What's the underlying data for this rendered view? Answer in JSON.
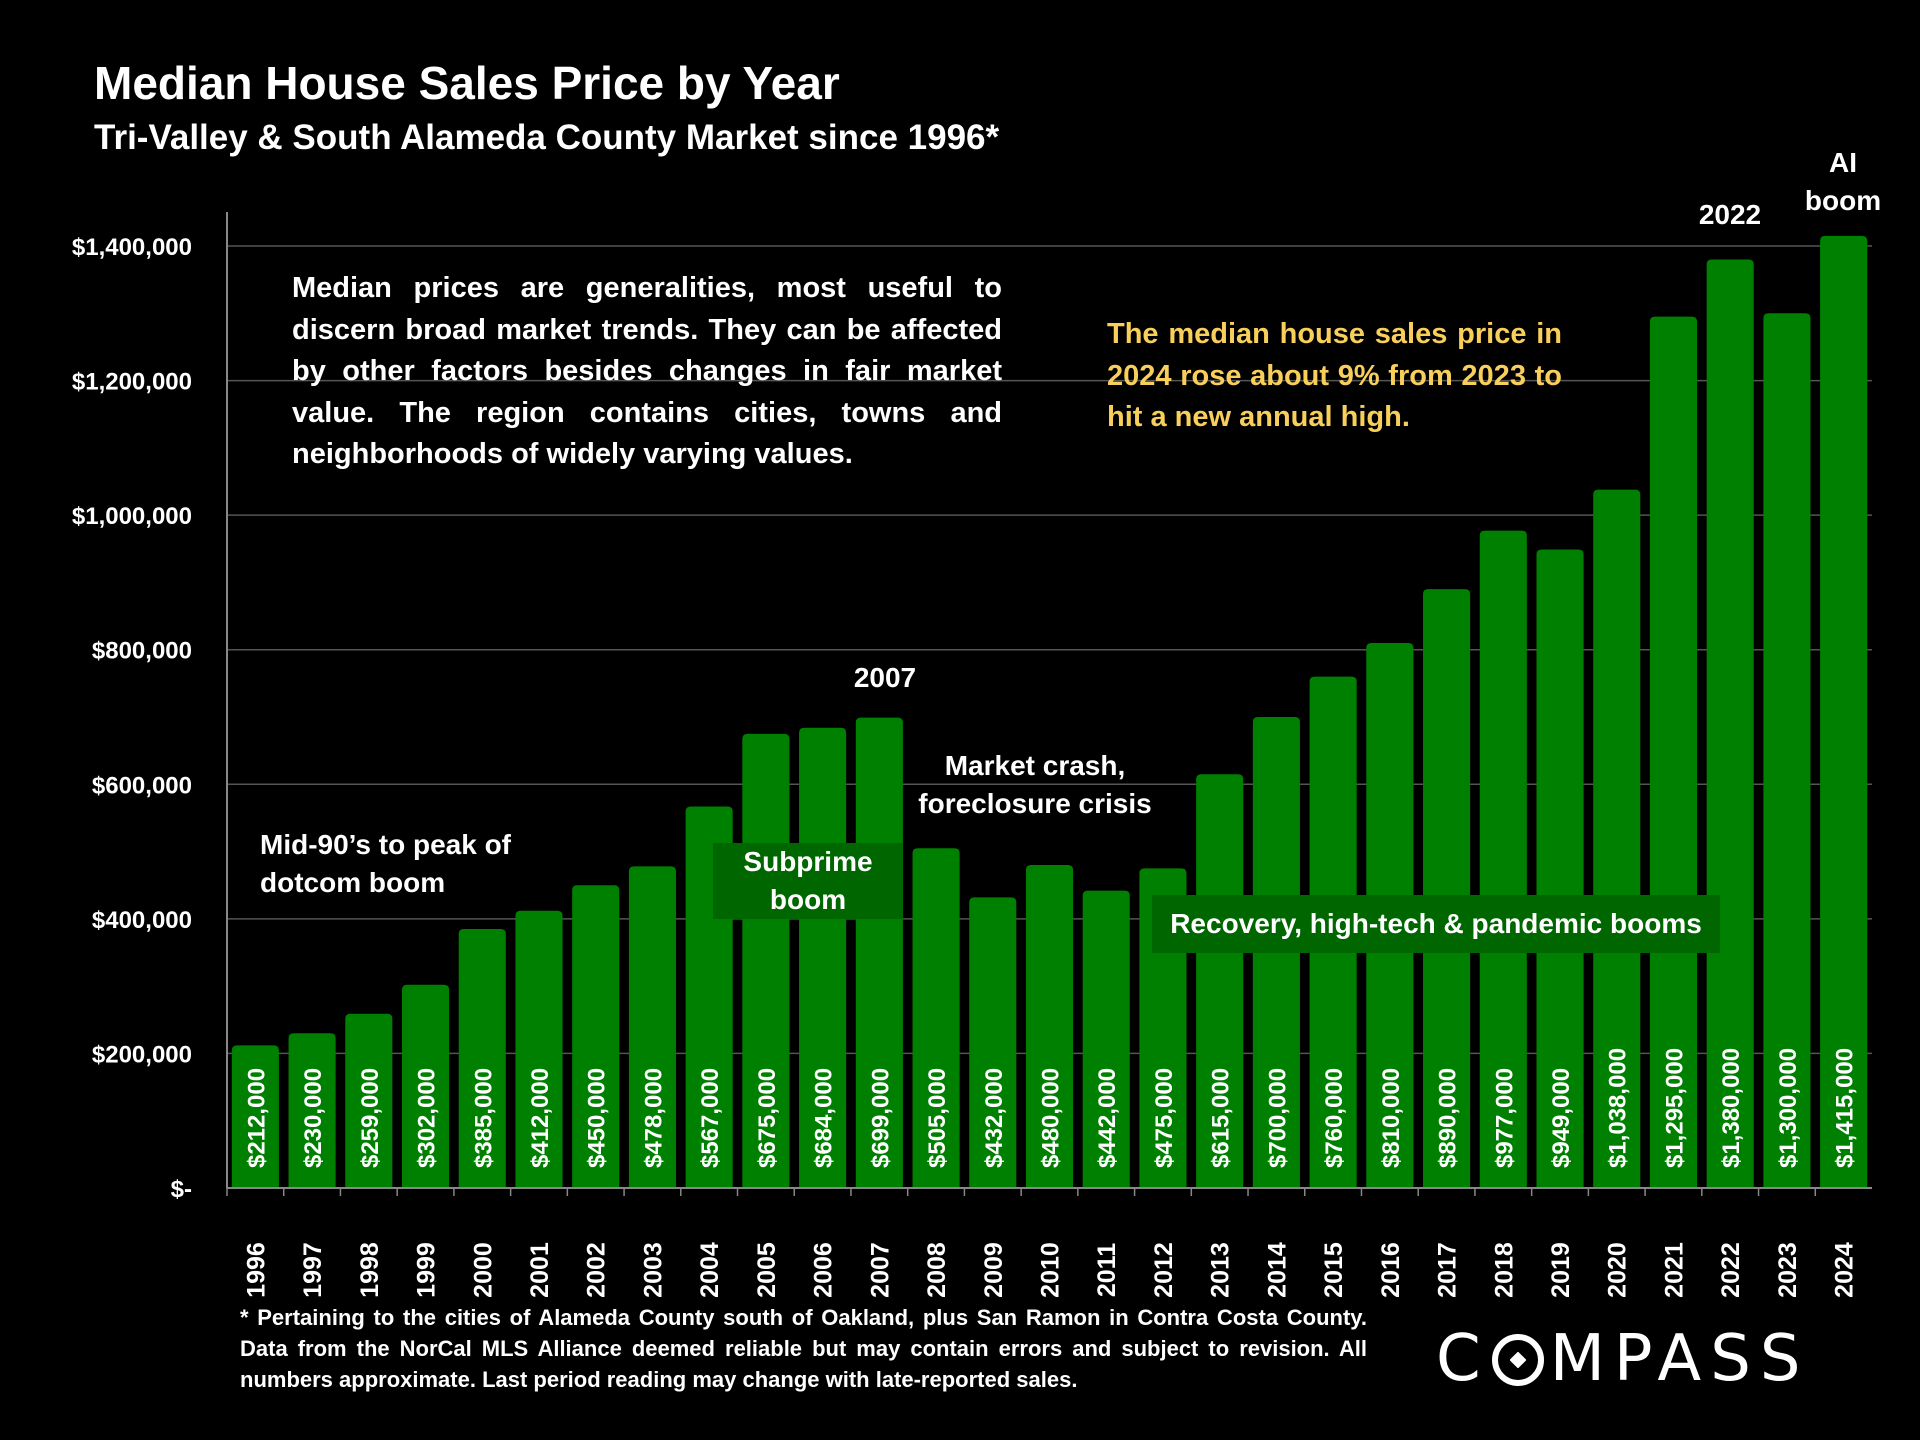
{
  "header": {
    "title": "Median House Sales Price by Year",
    "subtitle": "Tri-Valley & South Alameda County Market since 1996*"
  },
  "notes": {
    "general": "Median prices are generalities, most useful to discern broad market trends. They can be affected by other factors besides changes in fair market value. The region contains cities, towns and neighborhoods of widely varying values.",
    "highlight": "The median house sales price in 2024 rose about 9% from 2023 to hit a new annual high."
  },
  "annotations": {
    "dotcom": "Mid-90’s to peak of dotcom boom",
    "subprime": "Subprime boom",
    "y2007": "2007",
    "crash": "Market crash, foreclosure crisis",
    "recovery": "Recovery, high-tech & pandemic booms",
    "y2022": "2022",
    "ai": "AI boom"
  },
  "footnote": "* Pertaining to the cities of Alameda County south of Oakland, plus San Ramon in Contra Costa County. Data from the NorCal MLS Alliance deemed reliable but may contain errors and subject to revision. All numbers approximate. Last period reading may change with late-reported sales.",
  "brand": {
    "logo_left": "C",
    "logo_right": "MPASS"
  },
  "colors": {
    "bar": "#008000",
    "background": "#000000",
    "highlight_text": "#f7cf5a",
    "era_box": "#006600",
    "grid": "#555555"
  },
  "chart_data": {
    "type": "bar",
    "title": "Median House Sales Price by Year",
    "subtitle": "Tri-Valley & South Alameda County Market since 1996*",
    "categories": [
      "1996",
      "1997",
      "1998",
      "1999",
      "2000",
      "2001",
      "2002",
      "2003",
      "2004",
      "2005",
      "2006",
      "2007",
      "2008",
      "2009",
      "2010",
      "2011",
      "2012",
      "2013",
      "2014",
      "2015",
      "2016",
      "2017",
      "2018",
      "2019",
      "2020",
      "2021",
      "2022",
      "2023",
      "2024"
    ],
    "values": [
      212000,
      230000,
      259000,
      302000,
      385000,
      412000,
      450000,
      478000,
      567000,
      675000,
      684000,
      699000,
      505000,
      432000,
      480000,
      442000,
      475000,
      615000,
      700000,
      760000,
      810000,
      890000,
      977000,
      949000,
      1038000,
      1295000,
      1380000,
      1300000,
      1415000
    ],
    "data_labels": [
      "$212,000",
      "$230,000",
      "$259,000",
      "$302,000",
      "$385,000",
      "$412,000",
      "$450,000",
      "$478,000",
      "$567,000",
      "$675,000",
      "$684,000",
      "$699,000",
      "$505,000",
      "$432,000",
      "$480,000",
      "$442,000",
      "$475,000",
      "$615,000",
      "$700,000",
      "$760,000",
      "$810,000",
      "$890,000",
      "$977,000",
      "$949,000",
      "$1,038,000",
      "$1,295,000",
      "$1,380,000",
      "$1,300,000",
      "$1,415,000"
    ],
    "y_ticks": [
      0,
      200000,
      400000,
      600000,
      800000,
      1000000,
      1200000,
      1400000
    ],
    "y_tick_labels": [
      "$-",
      "$200,000",
      "$400,000",
      "$600,000",
      "$800,000",
      "$1,000,000",
      "$1,200,000",
      "$1,400,000"
    ],
    "ylim": [
      0,
      1450000
    ],
    "grid": true,
    "legend": "none"
  }
}
